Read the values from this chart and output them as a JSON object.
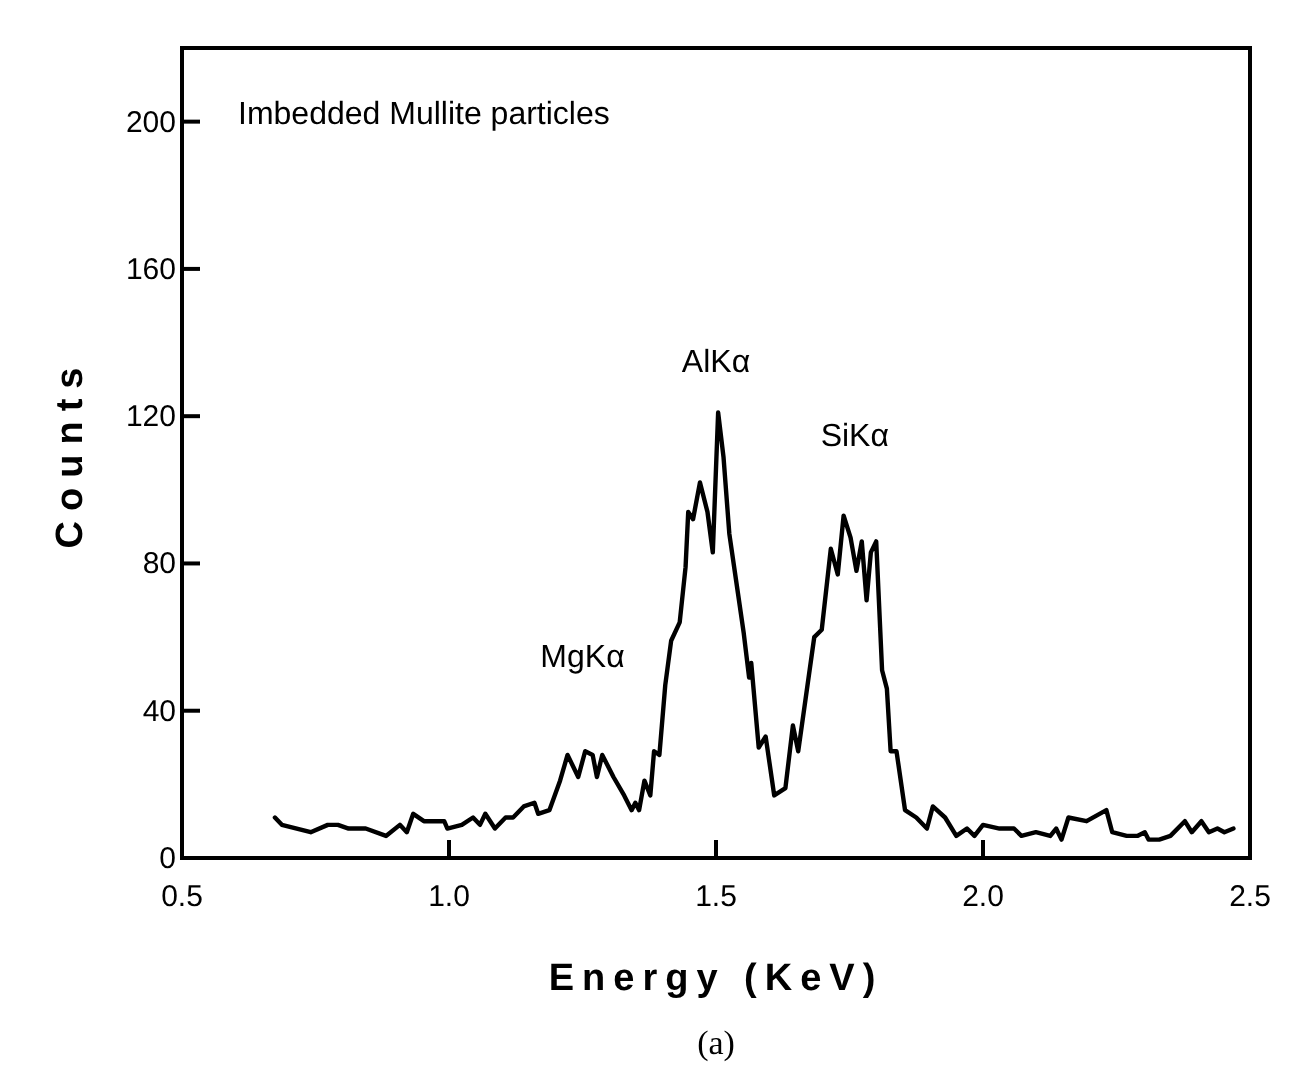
{
  "chart_data": {
    "type": "line",
    "xlabel": "Energy (KeV)",
    "ylabel": "Counts",
    "xlim": [
      0.5,
      2.5
    ],
    "xticks": [
      {
        "value": 0.5,
        "label": "0.5"
      },
      {
        "value": 1,
        "label": "1.0"
      },
      {
        "value": 1.5,
        "label": "1.5"
      },
      {
        "value": 2,
        "label": "2.0"
      },
      {
        "value": 2.5,
        "label": "2.5"
      }
    ],
    "ylim": [
      0,
      220
    ],
    "yticks": [
      0,
      40,
      80,
      120,
      160,
      200
    ],
    "grid": false,
    "marker": "none",
    "line_style": "solid",
    "annotations": [
      "Imbedded Mullite particles",
      "MgKα",
      "AlKα",
      "SiKα",
      "(a)"
    ],
    "series": [
      {
        "color": "#000000",
        "x": [
          0.674,
          0.687,
          0.741,
          0.773,
          0.792,
          0.812,
          0.844,
          0.882,
          0.908,
          0.921,
          0.933,
          0.953,
          0.972,
          0.991,
          0.997,
          1.024,
          1.045,
          1.058,
          1.068,
          1.086,
          1.106,
          1.12,
          1.14,
          1.16,
          1.167,
          1.188,
          1.208,
          1.222,
          1.242,
          1.255,
          1.269,
          1.277,
          1.287,
          1.308,
          1.328,
          1.342,
          1.349,
          1.356,
          1.366,
          1.377,
          1.384,
          1.394,
          1.405,
          1.416,
          1.432,
          1.443,
          1.448,
          1.457,
          1.47,
          1.484,
          1.494,
          1.504,
          1.514,
          1.525,
          1.541,
          1.552,
          1.562,
          1.566,
          1.58,
          1.593,
          1.609,
          1.63,
          1.644,
          1.654,
          1.684,
          1.698,
          1.715,
          1.728,
          1.739,
          1.752,
          1.763,
          1.773,
          1.782,
          1.79,
          1.8,
          1.811,
          1.82,
          1.827,
          1.838,
          1.854,
          1.875,
          1.895,
          1.906,
          1.929,
          1.95,
          1.97,
          1.984,
          2.0,
          2.031,
          2.058,
          2.072,
          2.099,
          2.126,
          2.137,
          2.147,
          2.16,
          2.194,
          2.231,
          2.242,
          2.269,
          2.289,
          2.303,
          2.31,
          2.33,
          2.351,
          2.378,
          2.391,
          2.409,
          2.423,
          2.439,
          2.452,
          2.469
        ],
        "values": [
          11,
          9,
          7,
          9,
          9,
          8,
          8,
          6,
          9,
          7,
          12,
          10,
          10,
          10,
          8,
          9,
          11,
          9,
          12,
          8,
          11,
          11,
          14,
          15,
          12,
          13,
          21,
          28,
          22,
          29,
          28,
          22,
          28,
          22,
          17,
          13,
          15,
          13,
          21,
          17,
          29,
          28,
          47,
          59,
          64,
          79,
          94,
          92,
          102,
          94,
          83,
          121,
          109,
          88,
          72,
          61,
          49,
          53,
          30,
          33,
          17,
          19,
          36,
          29,
          60,
          62,
          84,
          77,
          93,
          87,
          78,
          86,
          70,
          83,
          86,
          51,
          46,
          29,
          29,
          13,
          11,
          8,
          14,
          11,
          6,
          8,
          6,
          9,
          8,
          8,
          6,
          7,
          6,
          8,
          5,
          11,
          10,
          13,
          7,
          6,
          6,
          7,
          5,
          5,
          6,
          10,
          7,
          10,
          7,
          8,
          7,
          8
        ]
      }
    ]
  }
}
